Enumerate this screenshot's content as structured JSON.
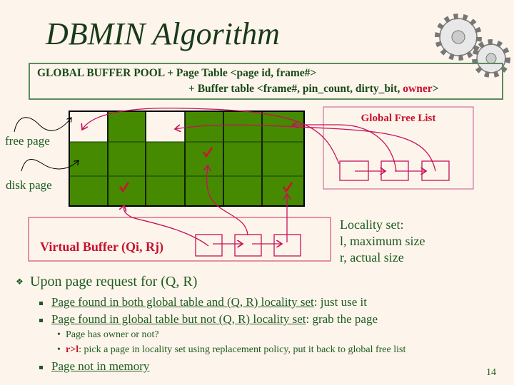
{
  "title": "DBMIN Algorithm",
  "header_box": {
    "line1": "GLOBAL BUFFER POOL + Page Table <page id, frame#>",
    "line2_prefix": "+ Buffer table <frame#, pin_count, dirty_bit, ",
    "line2_owner": "owner",
    "line2_suffix": ">"
  },
  "labels": {
    "free_page": "free page",
    "disk_page": "disk page"
  },
  "global_free_list": {
    "title": "Global Free List"
  },
  "virtual_buffer": {
    "label": "Virtual Buffer (Qi, Rj)"
  },
  "locality": {
    "line1": "Locality set:",
    "line2": "l, maximum size",
    "line3": "r, actual size"
  },
  "bullets": {
    "main": "Upon page request for (Q, R)",
    "case1_u": "Page found in both global table and (Q, R) locality set",
    "case1_rest": ": just use it",
    "case2_u": "Page found in global table but not (Q, R) locality set",
    "case2_rest": ": grab the page",
    "sub1": "Page has owner or not?",
    "sub2_red": "r>l",
    "sub2_rest": ": pick a page in locality set using replacement policy, put it back to global free list",
    "case3_u": "Page not in memory"
  },
  "page_number": "14",
  "colors": {
    "page_green": "#458a00",
    "accent_red": "#c8102e",
    "text_green": "#1e5b1e",
    "background": "#fdf5eb"
  }
}
